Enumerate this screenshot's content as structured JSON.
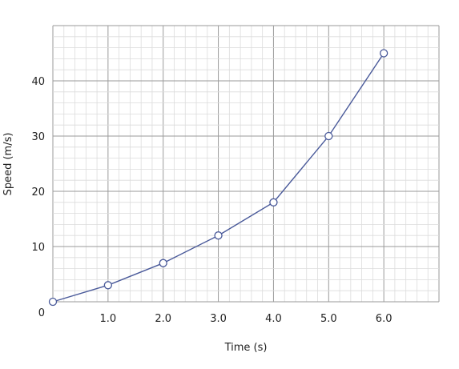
{
  "chart_data": {
    "type": "line",
    "title": "",
    "xlabel": "Time (s)",
    "ylabel": "Speed (m/s)",
    "xlim": [
      0,
      7
    ],
    "ylim": [
      0,
      50
    ],
    "grid": true,
    "x_ticks": [
      "1.0",
      "2.0",
      "3.0",
      "4.0",
      "5.0",
      "6.0"
    ],
    "y_ticks": [
      "0",
      "10",
      "20",
      "30",
      "40"
    ],
    "series": [
      {
        "x": [
          0,
          1,
          2,
          3,
          4,
          5,
          6
        ],
        "y": [
          0,
          3,
          7,
          12,
          18,
          30,
          45
        ],
        "color": "#4a5a9a",
        "marker": "open-circle"
      }
    ]
  }
}
